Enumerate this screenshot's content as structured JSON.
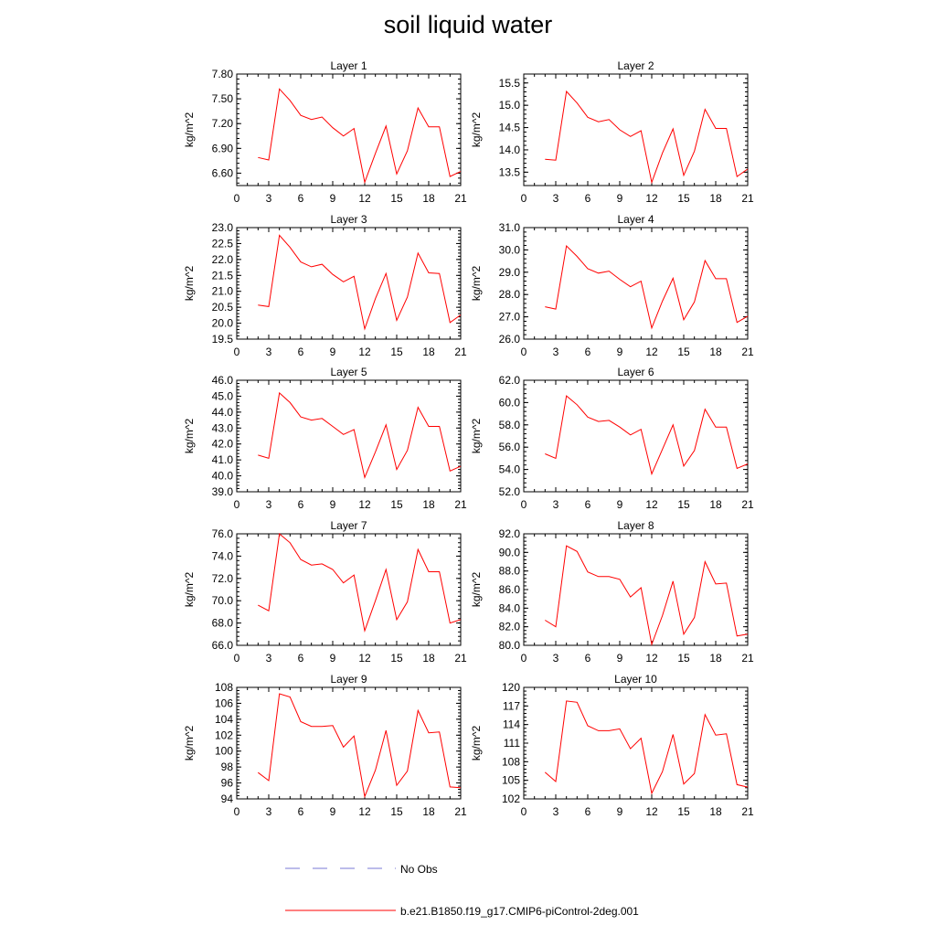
{
  "title": "soil liquid water",
  "legend": {
    "items": [
      {
        "label": "No Obs",
        "color": "#7a7ad6",
        "style": "dashed"
      },
      {
        "label": "b.e21.B1850.f19_g17.CMIP6-piControl-2deg.001",
        "color": "#ff0000",
        "style": "solid"
      }
    ]
  },
  "chart_data": [
    {
      "type": "line",
      "title": "Layer 1",
      "xlabel": "",
      "ylabel": "kg/m^2",
      "xlim": [
        0,
        21
      ],
      "xticks": [
        "0",
        "3",
        "6",
        "9",
        "12",
        "15",
        "18",
        "21"
      ],
      "ylim": [
        6.45,
        7.8
      ],
      "yticks": [
        "6.60",
        "6.90",
        "7.20",
        "7.50",
        "7.80"
      ],
      "series": [
        {
          "color": "#ff0000",
          "x": [
            2,
            3,
            4,
            5,
            6,
            7,
            8,
            9,
            10,
            11,
            12,
            13,
            14,
            15,
            16,
            17,
            18,
            19,
            20,
            21
          ],
          "y": [
            6.79,
            6.76,
            7.62,
            7.48,
            7.3,
            7.25,
            7.28,
            7.15,
            7.05,
            7.14,
            6.49,
            6.84,
            7.17,
            6.59,
            6.87,
            7.39,
            7.16,
            7.16,
            6.56,
            6.62
          ]
        }
      ]
    },
    {
      "type": "line",
      "title": "Layer 2",
      "xlabel": "",
      "ylabel": "kg/m^2",
      "xlim": [
        0,
        21
      ],
      "xticks": [
        "0",
        "3",
        "6",
        "9",
        "12",
        "15",
        "18",
        "21"
      ],
      "ylim": [
        13.2,
        15.7
      ],
      "yticks": [
        "13.5",
        "14.0",
        "14.5",
        "15.0",
        "15.5"
      ],
      "series": [
        {
          "color": "#ff0000",
          "x": [
            2,
            3,
            4,
            5,
            6,
            7,
            8,
            9,
            10,
            11,
            12,
            13,
            14,
            15,
            16,
            17,
            18,
            19,
            20,
            21
          ],
          "y": [
            13.79,
            13.77,
            15.31,
            15.05,
            14.73,
            14.63,
            14.68,
            14.45,
            14.3,
            14.43,
            13.27,
            13.93,
            14.47,
            13.43,
            13.97,
            14.91,
            14.48,
            14.48,
            13.4,
            13.57
          ]
        }
      ]
    },
    {
      "type": "line",
      "title": "Layer 3",
      "xlabel": "",
      "ylabel": "kg/m^2",
      "xlim": [
        0,
        21
      ],
      "xticks": [
        "0",
        "3",
        "6",
        "9",
        "12",
        "15",
        "18",
        "21"
      ],
      "ylim": [
        19.5,
        23.0
      ],
      "yticks": [
        "19.5",
        "20.0",
        "20.5",
        "21.0",
        "21.5",
        "22.0",
        "22.5",
        "23.0"
      ],
      "series": [
        {
          "color": "#ff0000",
          "x": [
            2,
            3,
            4,
            5,
            6,
            7,
            8,
            9,
            10,
            11,
            12,
            13,
            14,
            15,
            16,
            17,
            18,
            19,
            20,
            21
          ],
          "y": [
            20.57,
            20.52,
            22.76,
            22.38,
            21.92,
            21.77,
            21.85,
            21.53,
            21.3,
            21.47,
            19.82,
            20.77,
            21.56,
            20.09,
            20.82,
            22.2,
            21.58,
            21.56,
            20.02,
            20.26
          ]
        }
      ]
    },
    {
      "type": "line",
      "title": "Layer 4",
      "xlabel": "",
      "ylabel": "kg/m^2",
      "xlim": [
        0,
        21
      ],
      "xticks": [
        "0",
        "3",
        "6",
        "9",
        "12",
        "15",
        "18",
        "21"
      ],
      "ylim": [
        26.0,
        31.0
      ],
      "yticks": [
        "26.0",
        "27.0",
        "28.0",
        "29.0",
        "30.0",
        "31.0"
      ],
      "series": [
        {
          "color": "#ff0000",
          "x": [
            2,
            3,
            4,
            5,
            6,
            7,
            8,
            9,
            10,
            11,
            12,
            13,
            14,
            15,
            16,
            17,
            18,
            19,
            20,
            21
          ],
          "y": [
            27.45,
            27.35,
            30.18,
            29.71,
            29.16,
            28.96,
            29.05,
            28.68,
            28.35,
            28.6,
            26.5,
            27.7,
            28.73,
            26.87,
            27.67,
            29.52,
            28.71,
            28.71,
            26.75,
            27.03
          ]
        }
      ]
    },
    {
      "type": "line",
      "title": "Layer 5",
      "xlabel": "",
      "ylabel": "kg/m^2",
      "xlim": [
        0,
        21
      ],
      "xticks": [
        "0",
        "3",
        "6",
        "9",
        "12",
        "15",
        "18",
        "21"
      ],
      "ylim": [
        39.0,
        46.0
      ],
      "yticks": [
        "39.0",
        "40.0",
        "41.0",
        "42.0",
        "43.0",
        "44.0",
        "45.0",
        "46.0"
      ],
      "series": [
        {
          "color": "#ff0000",
          "x": [
            2,
            3,
            4,
            5,
            6,
            7,
            8,
            9,
            10,
            11,
            12,
            13,
            14,
            15,
            16,
            17,
            18,
            19,
            20,
            21
          ],
          "y": [
            41.3,
            41.1,
            45.2,
            44.6,
            43.7,
            43.5,
            43.6,
            43.1,
            42.6,
            42.9,
            39.9,
            41.5,
            43.2,
            40.4,
            41.6,
            44.3,
            43.1,
            43.1,
            40.3,
            40.6
          ]
        }
      ]
    },
    {
      "type": "line",
      "title": "Layer 6",
      "xlabel": "",
      "ylabel": "kg/m^2",
      "xlim": [
        0,
        21
      ],
      "xticks": [
        "0",
        "3",
        "6",
        "9",
        "12",
        "15",
        "18",
        "21"
      ],
      "ylim": [
        52.0,
        62.0
      ],
      "yticks": [
        "52.0",
        "54.0",
        "56.0",
        "58.0",
        "60.0",
        "62.0"
      ],
      "series": [
        {
          "color": "#ff0000",
          "x": [
            2,
            3,
            4,
            5,
            6,
            7,
            8,
            9,
            10,
            11,
            12,
            13,
            14,
            15,
            16,
            17,
            18,
            19,
            20,
            21
          ],
          "y": [
            55.4,
            55.0,
            60.6,
            59.8,
            58.7,
            58.3,
            58.4,
            57.8,
            57.1,
            57.6,
            53.6,
            55.8,
            58.0,
            54.3,
            55.7,
            59.4,
            57.8,
            57.8,
            54.1,
            54.5
          ]
        }
      ]
    },
    {
      "type": "line",
      "title": "Layer 7",
      "xlabel": "",
      "ylabel": "kg/m^2",
      "xlim": [
        0,
        21
      ],
      "xticks": [
        "0",
        "3",
        "6",
        "9",
        "12",
        "15",
        "18",
        "21"
      ],
      "ylim": [
        66.0,
        76.0
      ],
      "yticks": [
        "66.0",
        "68.0",
        "70.0",
        "72.0",
        "74.0",
        "76.0"
      ],
      "series": [
        {
          "color": "#ff0000",
          "x": [
            2,
            3,
            4,
            5,
            6,
            7,
            8,
            9,
            10,
            11,
            12,
            13,
            14,
            15,
            16,
            17,
            18,
            19,
            20,
            21
          ],
          "y": [
            69.6,
            69.1,
            76.0,
            75.2,
            73.7,
            73.2,
            73.3,
            72.8,
            71.6,
            72.3,
            67.3,
            70.0,
            72.8,
            68.3,
            69.9,
            74.6,
            72.6,
            72.6,
            68.0,
            68.3
          ]
        }
      ]
    },
    {
      "type": "line",
      "title": "Layer 8",
      "xlabel": "",
      "ylabel": "kg/m^2",
      "xlim": [
        0,
        21
      ],
      "xticks": [
        "0",
        "3",
        "6",
        "9",
        "12",
        "15",
        "18",
        "21"
      ],
      "ylim": [
        80.0,
        92.0
      ],
      "yticks": [
        "80.0",
        "82.0",
        "84.0",
        "86.0",
        "88.0",
        "90.0",
        "92.0"
      ],
      "series": [
        {
          "color": "#ff0000",
          "x": [
            2,
            3,
            4,
            5,
            6,
            7,
            8,
            9,
            10,
            11,
            12,
            13,
            14,
            15,
            16,
            17,
            18,
            19,
            20,
            21
          ],
          "y": [
            82.7,
            82.0,
            90.7,
            90.1,
            87.9,
            87.4,
            87.4,
            87.1,
            85.2,
            86.2,
            80.1,
            83.2,
            86.9,
            81.2,
            83.0,
            89.0,
            86.6,
            86.7,
            81.0,
            81.2
          ]
        }
      ]
    },
    {
      "type": "line",
      "title": "Layer 9",
      "xlabel": "",
      "ylabel": "kg/m^2",
      "xlim": [
        0,
        21
      ],
      "xticks": [
        "0",
        "3",
        "6",
        "9",
        "12",
        "15",
        "18",
        "21"
      ],
      "ylim": [
        94,
        108
      ],
      "yticks": [
        "94",
        "96",
        "98",
        "100",
        "102",
        "104",
        "106",
        "108"
      ],
      "series": [
        {
          "color": "#ff0000",
          "x": [
            2,
            3,
            4,
            5,
            6,
            7,
            8,
            9,
            10,
            11,
            12,
            13,
            14,
            15,
            16,
            17,
            18,
            19,
            20,
            21
          ],
          "y": [
            97.3,
            96.3,
            107.2,
            106.8,
            103.7,
            103.1,
            103.1,
            103.2,
            100.5,
            101.9,
            94.3,
            97.6,
            102.6,
            95.7,
            97.5,
            105.1,
            102.3,
            102.4,
            95.5,
            95.4
          ]
        }
      ]
    },
    {
      "type": "line",
      "title": "Layer 10",
      "xlabel": "",
      "ylabel": "kg/m^2",
      "xlim": [
        0,
        21
      ],
      "xticks": [
        "0",
        "3",
        "6",
        "9",
        "12",
        "15",
        "18",
        "21"
      ],
      "ylim": [
        102,
        120
      ],
      "yticks": [
        "102",
        "105",
        "108",
        "111",
        "114",
        "117",
        "120"
      ],
      "series": [
        {
          "color": "#ff0000",
          "x": [
            2,
            3,
            4,
            5,
            6,
            7,
            8,
            9,
            10,
            11,
            12,
            13,
            14,
            15,
            16,
            17,
            18,
            19,
            20,
            21
          ],
          "y": [
            106.3,
            104.8,
            117.8,
            117.6,
            113.8,
            113.0,
            113.0,
            113.3,
            110.1,
            111.8,
            102.9,
            106.4,
            112.4,
            104.4,
            106.1,
            115.6,
            112.3,
            112.5,
            104.3,
            103.9
          ]
        }
      ]
    }
  ]
}
